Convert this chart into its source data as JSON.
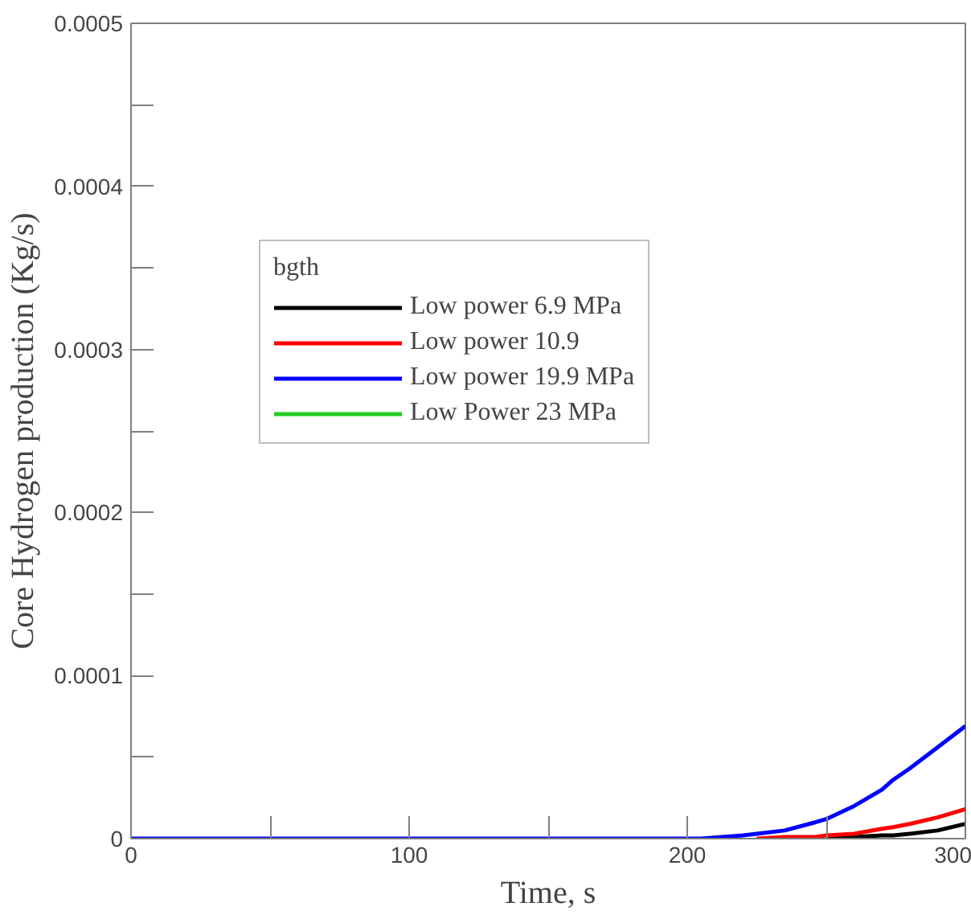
{
  "chart_data": {
    "type": "line",
    "xlabel": "Time, s",
    "ylabel": "Core Hydrogen production (Kg/s)",
    "legend_title": "bgth",
    "legend": "top left",
    "grid": false,
    "x": [
      0,
      100,
      200,
      205,
      220,
      225,
      235,
      246,
      250,
      260,
      270,
      274,
      280,
      290,
      300
    ],
    "xlim": [
      0,
      300
    ],
    "ylim": [
      0,
      0.0005
    ],
    "xticks": [
      0,
      {
        "value": 50,
        "label": null
      },
      100,
      {
        "value": 150,
        "label": null
      },
      200,
      {
        "value": 250,
        "label": null
      },
      300
    ],
    "yticks": [
      0,
      {
        "value": 5e-05,
        "label": null
      },
      0.0001,
      {
        "value": 0.00015,
        "label": null
      },
      0.0002,
      {
        "value": 0.00025,
        "label": null
      },
      0.0003,
      {
        "value": 0.00035,
        "label": null
      },
      0.0004,
      {
        "value": 0.00045,
        "label": null
      },
      0.0005
    ],
    "series": [
      {
        "name": "Low power 6.9 MPa",
        "color": "#000000",
        "values": [
          null,
          null,
          null,
          null,
          null,
          null,
          null,
          null,
          0,
          1e-06,
          2e-06,
          2e-06,
          3e-06,
          5e-06,
          9e-06
        ]
      },
      {
        "name": "Low power 10.9",
        "color": "#ff0000",
        "values": [
          null,
          null,
          null,
          null,
          null,
          0,
          1e-06,
          1e-06,
          2e-06,
          3e-06,
          6e-06,
          7e-06,
          9e-06,
          1.3e-05,
          1.8e-05
        ]
      },
      {
        "name": "Low power 19.9 MPa",
        "color": "#0000ff",
        "values": [
          0,
          0,
          0,
          0,
          2e-06,
          3e-06,
          5e-06,
          1e-05,
          1.2e-05,
          2e-05,
          3e-05,
          3.6e-05,
          4.3e-05,
          5.6e-05,
          6.9e-05
        ]
      },
      {
        "name": "Low Power 23 MPa",
        "color": "#22cc22",
        "values": [
          null,
          null,
          null,
          null,
          null,
          null,
          null,
          null,
          null,
          null,
          null,
          null,
          null,
          null,
          null
        ]
      }
    ]
  }
}
